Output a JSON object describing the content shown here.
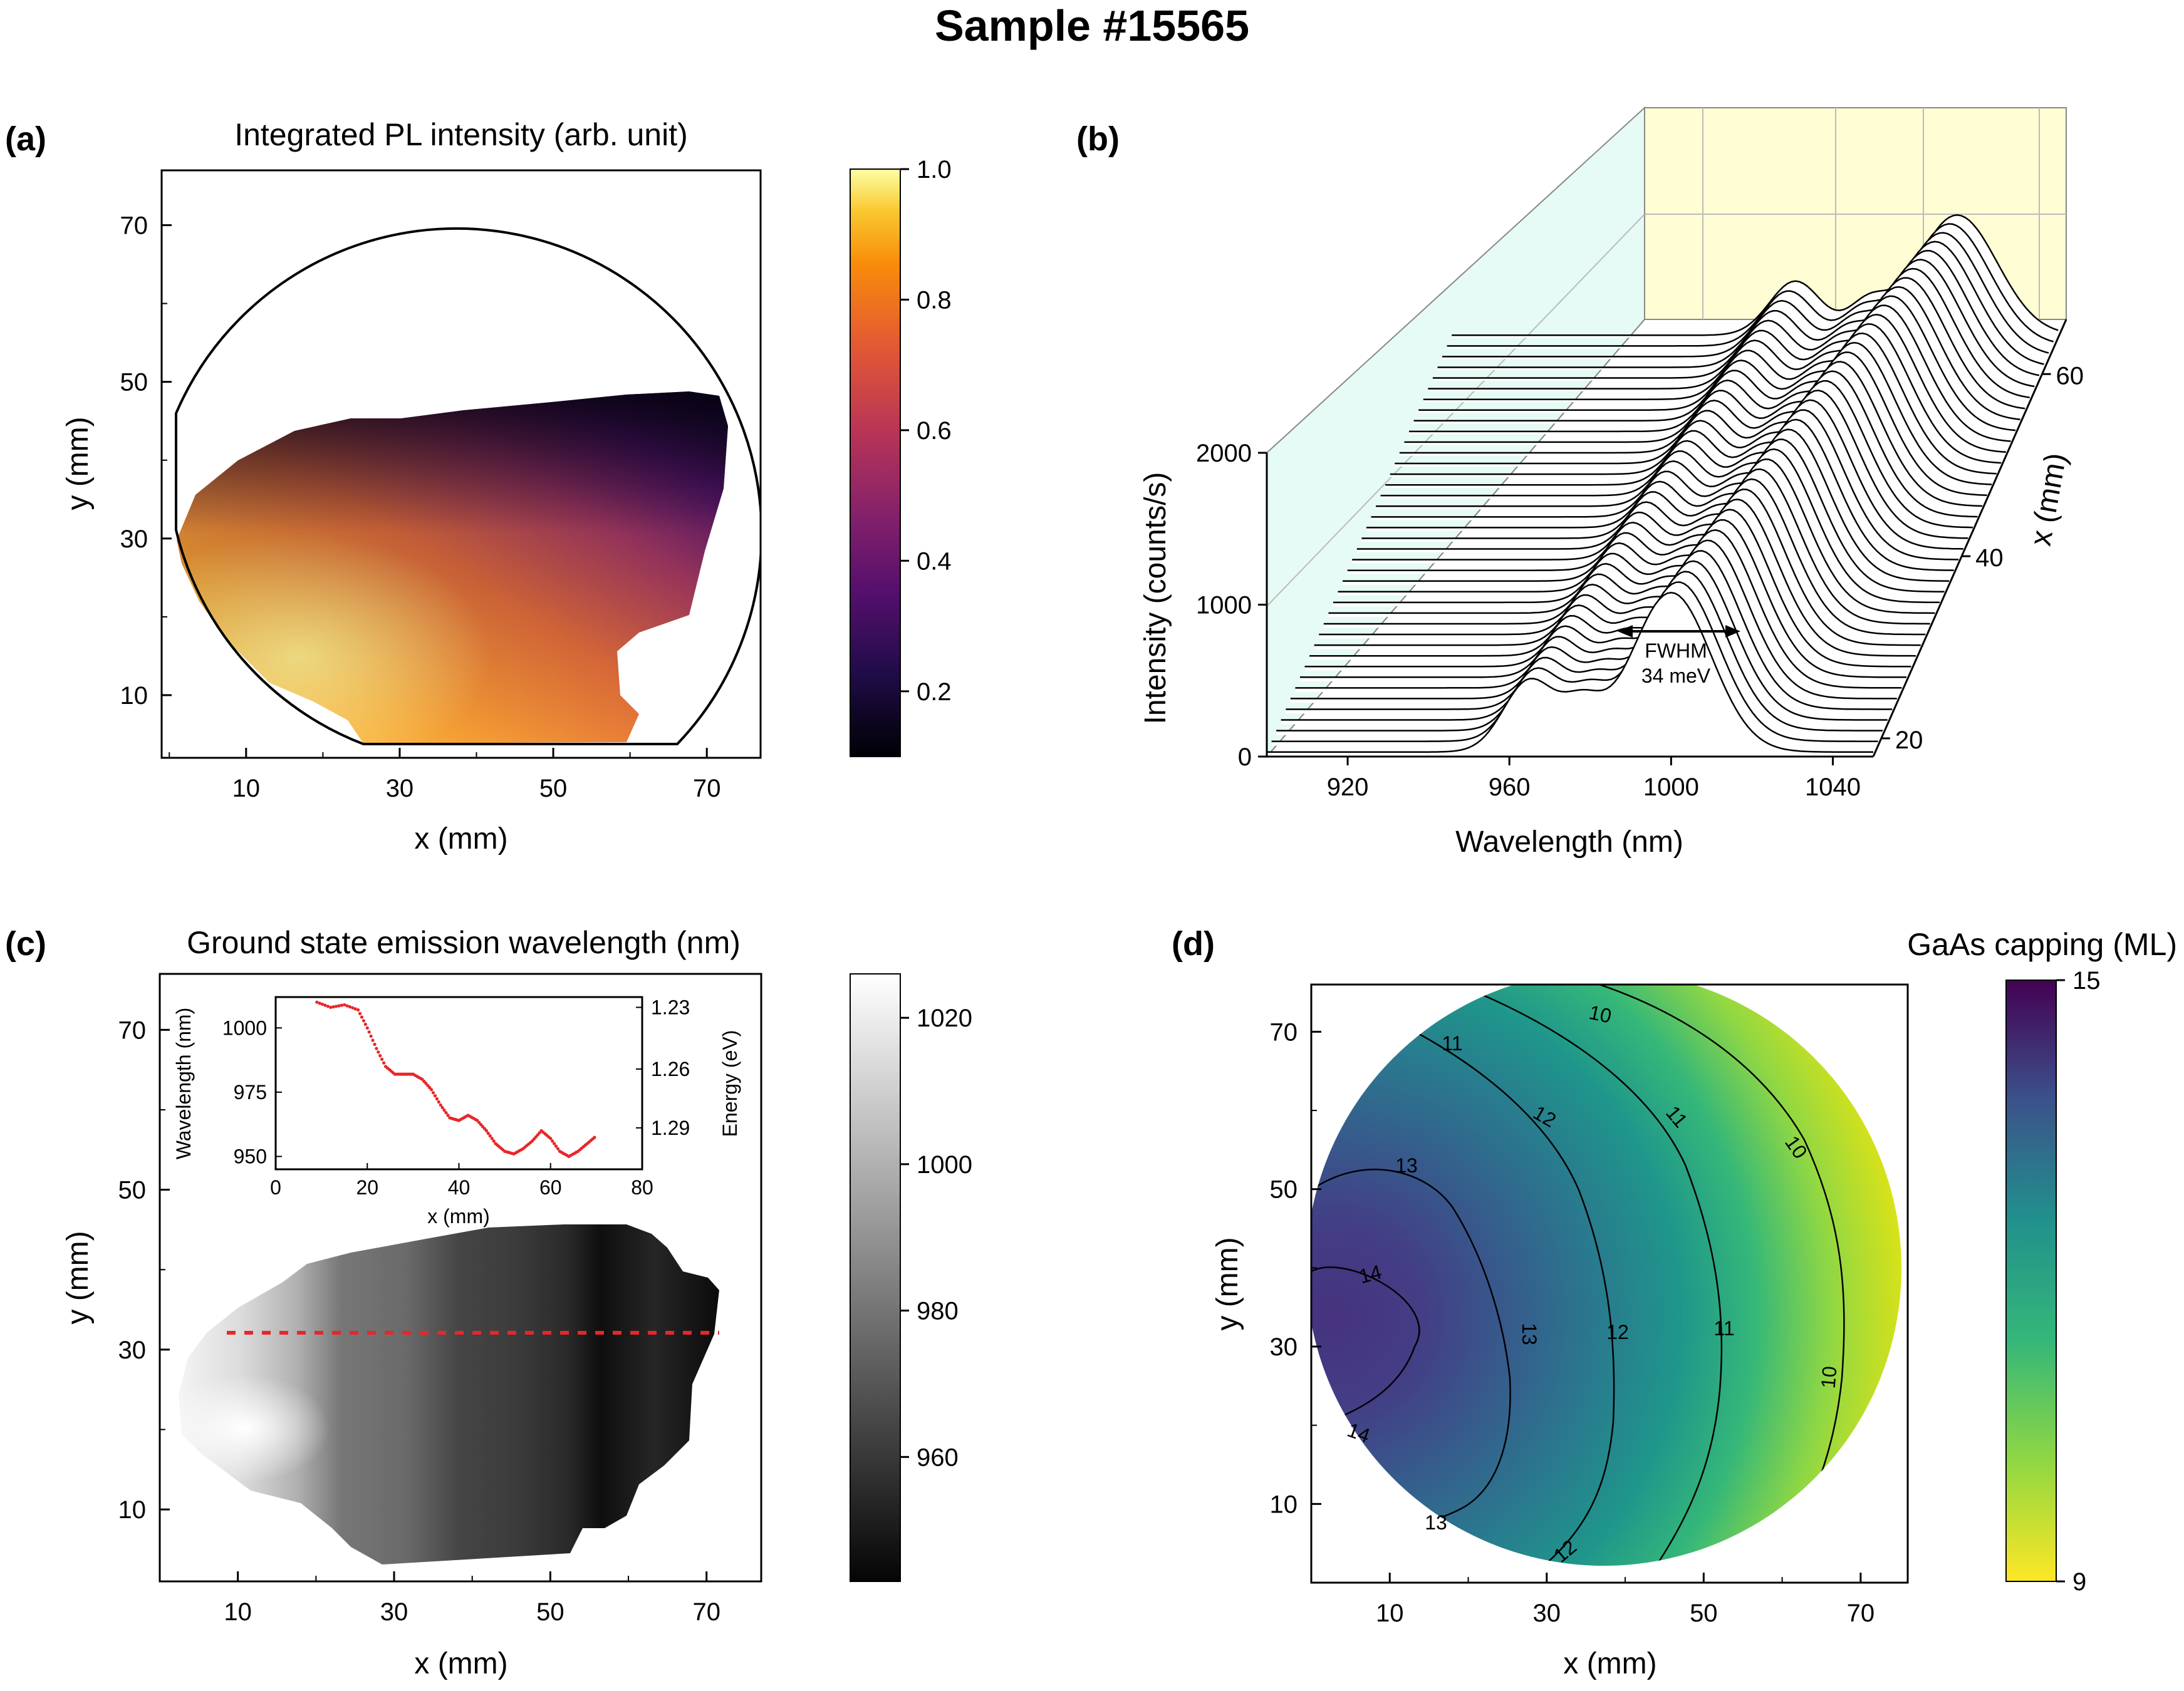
{
  "figure": {
    "title": "Sample #15565"
  },
  "chart_data": [
    {
      "panel": "(a)",
      "type": "heatmap",
      "title": "Integrated PL intensity (arb. unit)",
      "xlabel": "x (mm)",
      "ylabel": "y (mm)",
      "xlim": [
        -1,
        77
      ],
      "ylim": [
        2,
        77
      ],
      "xticks": [
        "10",
        "30",
        "50",
        "70"
      ],
      "yticks": [
        "10",
        "30",
        "50",
        "70"
      ],
      "colormap": "inferno",
      "colorbar": {
        "range": [
          0.1,
          1.0
        ],
        "ticks": [
          "0.2",
          "0.4",
          "0.6",
          "0.8",
          "1.0"
        ]
      },
      "description_values": {
        "max_region_xy_mm": [
          12,
          18
        ],
        "max_value": 0.95,
        "top_edge_value": 0.12
      }
    },
    {
      "panel": "(b)",
      "type": "line",
      "title": "",
      "xlabel": "Wavelength (nm)",
      "ylabel": "Intensity (counts/s)",
      "zlabel": "x (mm)",
      "xlim": [
        900,
        1050
      ],
      "ylim": [
        0,
        2000
      ],
      "xticks": [
        "920",
        "960",
        "1000",
        "1040"
      ],
      "yticks": [
        "0",
        "1000",
        "2000"
      ],
      "zticks": [
        "20",
        "40",
        "60"
      ],
      "series_count": 40,
      "x_range_mm": [
        18,
        64
      ],
      "main_peak_nm": {
        "x_20mm": 1000,
        "x_60mm": 1025
      },
      "secondary_peak_nm": 965,
      "peak_intensity_counts": {
        "x_20mm": 1050,
        "x_60mm": 1520
      },
      "annotation": {
        "text": "FWHM",
        "value": "34 meV"
      }
    },
    {
      "panel": "(c)",
      "type": "heatmap",
      "title": "Ground state emission wavelength (nm)",
      "xlabel": "x (mm)",
      "ylabel": "y (mm)",
      "xlim": [
        0,
        77
      ],
      "ylim": [
        1,
        77
      ],
      "xticks": [
        "10",
        "30",
        "50",
        "70"
      ],
      "yticks": [
        "10",
        "30",
        "50",
        "70"
      ],
      "colormap": "gray",
      "colorbar": {
        "range": [
          943,
          1026
        ],
        "ticks": [
          "960",
          "980",
          "1000",
          "1020"
        ]
      },
      "line_scan_y_mm": 31.5,
      "inset": {
        "type": "scatter",
        "xlabel": "x (mm)",
        "ylabel": "Wavelength (nm)",
        "y2label": "Energy (eV)",
        "xlim": [
          0,
          80
        ],
        "ylim": [
          945,
          1012
        ],
        "xticks": [
          "0",
          "20",
          "40",
          "60",
          "80"
        ],
        "yticks": [
          "950",
          "975",
          "1000"
        ],
        "y2ticks": [
          "1.23",
          "1.26",
          "1.29"
        ],
        "x": [
          9,
          12,
          15,
          18,
          20,
          22,
          24,
          26,
          28,
          30,
          32,
          34,
          36,
          38,
          40,
          42,
          44,
          46,
          48,
          50,
          52,
          54,
          56,
          58,
          60,
          62,
          64,
          66,
          68,
          70
        ],
        "y": [
          1010,
          1008,
          1009,
          1007,
          1000,
          992,
          985,
          982,
          982,
          982,
          980,
          976,
          970,
          965,
          964,
          966,
          964,
          960,
          955,
          952,
          951,
          953,
          956,
          960,
          957,
          952,
          950,
          952,
          955,
          958
        ]
      }
    },
    {
      "panel": "(d)",
      "type": "heatmap",
      "title": "GaAs capping (ML)",
      "xlabel": "x (mm)",
      "ylabel": "y (mm)",
      "xlim": [
        0,
        76
      ],
      "ylim": [
        0,
        76
      ],
      "xticks": [
        "10",
        "30",
        "50",
        "70"
      ],
      "yticks": [
        "10",
        "30",
        "50",
        "70"
      ],
      "colormap": "viridis_r",
      "colorbar": {
        "range": [
          9,
          15
        ],
        "ticks": [
          "9",
          "15"
        ]
      },
      "contours": [
        {
          "level": 10,
          "label": "10"
        },
        {
          "level": 11,
          "label": "11"
        },
        {
          "level": 12,
          "label": "12"
        },
        {
          "level": 13,
          "label": "13"
        },
        {
          "level": 14,
          "label": "14"
        }
      ],
      "center_max_xy_mm": [
        5,
        29
      ],
      "max_value": 14.6
    }
  ]
}
